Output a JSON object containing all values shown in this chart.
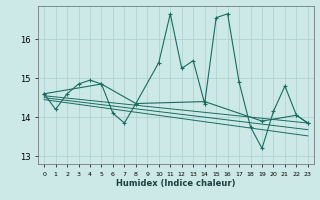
{
  "xlabel": "Humidex (Indice chaleur)",
  "background_color": "#cce9e7",
  "grid_color": "#aacfcc",
  "line_color": "#1a6b60",
  "xlim": [
    -0.5,
    23.5
  ],
  "ylim": [
    12.8,
    16.85
  ],
  "yticks": [
    13,
    14,
    15,
    16
  ],
  "xtick_labels": [
    "0",
    "1",
    "2",
    "3",
    "4",
    "5",
    "6",
    "7",
    "8",
    "9",
    "10",
    "11",
    "12",
    "13",
    "14",
    "15",
    "16",
    "17",
    "18",
    "19",
    "20",
    "21",
    "22",
    "23"
  ],
  "main_x": [
    0,
    1,
    2,
    3,
    4,
    5,
    6,
    7,
    8,
    10,
    11,
    12,
    13,
    14,
    15,
    16,
    17,
    18,
    19,
    20,
    21,
    22,
    23
  ],
  "main_y": [
    14.6,
    14.2,
    14.6,
    14.85,
    14.95,
    14.85,
    14.1,
    13.85,
    14.35,
    15.4,
    16.65,
    15.25,
    15.45,
    14.35,
    16.55,
    16.65,
    14.9,
    13.75,
    13.2,
    14.15,
    14.8,
    14.05,
    13.85
  ],
  "trend1_x": [
    0,
    5,
    8,
    14,
    19,
    22,
    23
  ],
  "trend1_y": [
    14.6,
    14.85,
    14.35,
    14.4,
    13.9,
    14.05,
    13.85
  ],
  "trend2_x": [
    0,
    23
  ],
  "trend2_y": [
    14.55,
    13.85
  ],
  "trend3_x": [
    0,
    23
  ],
  "trend3_y": [
    14.5,
    13.68
  ],
  "trend4_x": [
    0,
    23
  ],
  "trend4_y": [
    14.45,
    13.52
  ]
}
